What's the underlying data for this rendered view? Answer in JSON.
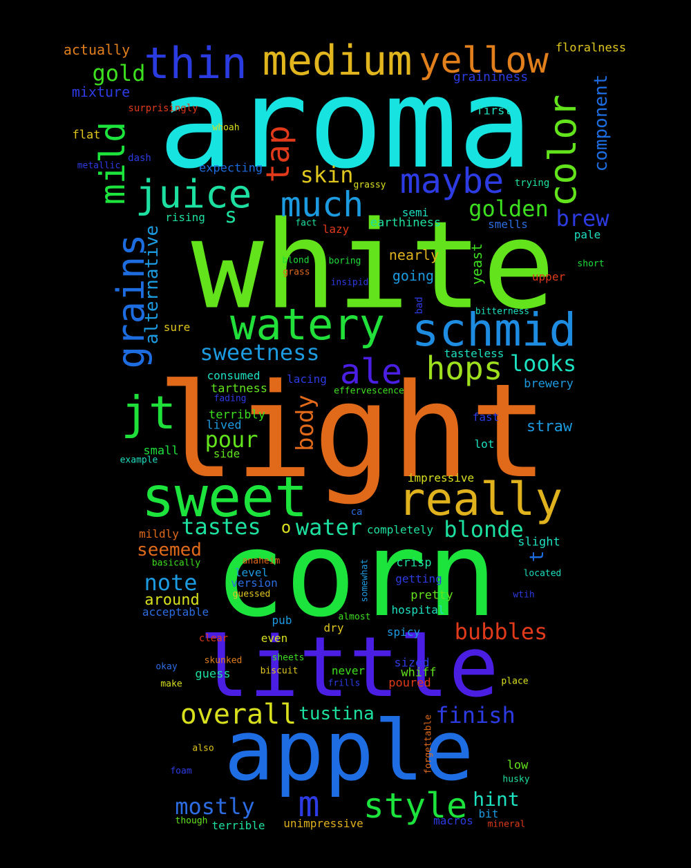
{
  "words": [
    {
      "text": "aroma",
      "color": "#17e3e0"
    },
    {
      "text": "white",
      "color": "#62e31b"
    },
    {
      "text": "light",
      "color": "#e06a1a"
    },
    {
      "text": "corn",
      "color": "#1de33d"
    },
    {
      "text": "little",
      "color": "#4a1fe3"
    },
    {
      "text": "apple",
      "color": "#1f6de3"
    },
    {
      "text": "sweet",
      "color": "#1de33d"
    },
    {
      "text": "really",
      "color": "#e0b21e"
    },
    {
      "text": "watery",
      "color": "#22e03a"
    },
    {
      "text": "schmid",
      "color": "#1e8ce0"
    },
    {
      "text": "medium",
      "color": "#e0b51d"
    },
    {
      "text": "yellow",
      "color": "#e07f1b"
    },
    {
      "text": "thin",
      "color": "#2a3be0"
    },
    {
      "text": "juice",
      "color": "#1de0a0"
    },
    {
      "text": "maybe",
      "color": "#2d3be3"
    },
    {
      "text": "much",
      "color": "#1d9be0"
    },
    {
      "text": "jt",
      "color": "#1fe03a"
    },
    {
      "text": "ale",
      "color": "#4a1fe3"
    },
    {
      "text": "hops",
      "color": "#9ee01e"
    },
    {
      "text": "style",
      "color": "#1de33d"
    },
    {
      "text": "overall",
      "color": "#d8e01e"
    },
    {
      "text": "m",
      "color": "#2d3be3"
    },
    {
      "text": "color",
      "color": "#62e31b"
    },
    {
      "text": "mild",
      "color": "#1de33d"
    },
    {
      "text": "grains",
      "color": "#1d6de0"
    },
    {
      "text": "tap",
      "color": "#e03a1b"
    },
    {
      "text": "golden",
      "color": "#3de01e"
    },
    {
      "text": "gold",
      "color": "#3de01e"
    },
    {
      "text": "brew",
      "color": "#2d3be3"
    },
    {
      "text": "skin",
      "color": "#e0c71e"
    },
    {
      "text": "s",
      "color": "#1de0a0"
    },
    {
      "text": "sweetness",
      "color": "#1d9be0"
    },
    {
      "text": "looks",
      "color": "#1de0c0"
    },
    {
      "text": "pour",
      "color": "#62e31b"
    },
    {
      "text": "tastes",
      "color": "#1de0a0"
    },
    {
      "text": "water",
      "color": "#1de0a0"
    },
    {
      "text": "blonde",
      "color": "#1de0a0"
    },
    {
      "text": "bubbles",
      "color": "#e03a1b"
    },
    {
      "text": "finish",
      "color": "#2d3be3"
    },
    {
      "text": "tustina",
      "color": "#1de0a0"
    },
    {
      "text": "note",
      "color": "#1d9be0"
    },
    {
      "text": "mostly",
      "color": "#2d6de3"
    },
    {
      "text": "hint",
      "color": "#1de0c0"
    },
    {
      "text": "body",
      "color": "#e06a1a"
    },
    {
      "text": "alternative",
      "color": "#1d9be0"
    },
    {
      "text": "component",
      "color": "#1d6de0"
    },
    {
      "text": "seemed",
      "color": "#e06a1a"
    },
    {
      "text": "around",
      "color": "#d8e01e"
    },
    {
      "text": "t",
      "color": "#1d6de0"
    },
    {
      "text": "yeast",
      "color": "#3de01e"
    },
    {
      "text": "straw",
      "color": "#1d9be0"
    },
    {
      "text": "actually",
      "color": "#e07f1b"
    },
    {
      "text": "floralness",
      "color": "#e0c71e"
    },
    {
      "text": "mixture",
      "color": "#2d3be3"
    },
    {
      "text": "graininess",
      "color": "#2d3be3"
    },
    {
      "text": "first",
      "color": "#1de0c0"
    },
    {
      "text": "surprisingly",
      "color": "#e03a1b"
    },
    {
      "text": "whoah",
      "color": "#d8e01e"
    },
    {
      "text": "flat",
      "color": "#e0c71e"
    },
    {
      "text": "dash",
      "color": "#2d3be3"
    },
    {
      "text": "metallic",
      "color": "#2d3be3"
    },
    {
      "text": "expecting",
      "color": "#1d6de0"
    },
    {
      "text": "grassy",
      "color": "#d8e01e"
    },
    {
      "text": "trying",
      "color": "#1de0a0"
    },
    {
      "text": "rising",
      "color": "#1de0a0"
    },
    {
      "text": "semi",
      "color": "#1de0c0"
    },
    {
      "text": "earthiness",
      "color": "#1de0a0"
    },
    {
      "text": "smells",
      "color": "#2d6de3"
    },
    {
      "text": "fact",
      "color": "#1de0a0"
    },
    {
      "text": "lazy",
      "color": "#e03a1b"
    },
    {
      "text": "pale",
      "color": "#1de0c0"
    },
    {
      "text": "nearly",
      "color": "#e0b21e"
    },
    {
      "text": "blond",
      "color": "#1de03a"
    },
    {
      "text": "boring",
      "color": "#1de03a"
    },
    {
      "text": "grass",
      "color": "#e06a1a"
    },
    {
      "text": "insipid",
      "color": "#2d3be3"
    },
    {
      "text": "short",
      "color": "#1de03a"
    },
    {
      "text": "upper",
      "color": "#e03a1b"
    },
    {
      "text": "going",
      "color": "#1d9be0"
    },
    {
      "text": "bad",
      "color": "#2d3be3"
    },
    {
      "text": "bitterness",
      "color": "#1de0c0"
    },
    {
      "text": "sure",
      "color": "#e0c71e"
    },
    {
      "text": "tasteless",
      "color": "#1de0c0"
    },
    {
      "text": "consumed",
      "color": "#1de0c0"
    },
    {
      "text": "lacing",
      "color": "#2d3be3"
    },
    {
      "text": "brewery",
      "color": "#1d9be0"
    },
    {
      "text": "tartness",
      "color": "#62e31b"
    },
    {
      "text": "effervescence",
      "color": "#3de01e"
    },
    {
      "text": "fading",
      "color": "#2d3be3"
    },
    {
      "text": "terribly",
      "color": "#3de01e"
    },
    {
      "text": "lived",
      "color": "#1d9be0"
    },
    {
      "text": "fast",
      "color": "#2d3be3"
    },
    {
      "text": "small",
      "color": "#1de03a"
    },
    {
      "text": "side",
      "color": "#62e31b"
    },
    {
      "text": "lot",
      "color": "#1de0c0"
    },
    {
      "text": "example",
      "color": "#1de0c0"
    },
    {
      "text": "impressive",
      "color": "#d8e01e"
    },
    {
      "text": "ca",
      "color": "#2d6de3"
    },
    {
      "text": "completely",
      "color": "#1de0a0"
    },
    {
      "text": "o",
      "color": "#d8e01e"
    },
    {
      "text": "slight",
      "color": "#1de0c0"
    },
    {
      "text": "mildly",
      "color": "#e06a1a"
    },
    {
      "text": "anaheim",
      "color": "#e06a1a"
    },
    {
      "text": "basically",
      "color": "#3de01e"
    },
    {
      "text": "crisp",
      "color": "#1de0a0"
    },
    {
      "text": "level",
      "color": "#1d9be0"
    },
    {
      "text": "somewhat",
      "color": "#1d9be0"
    },
    {
      "text": "located",
      "color": "#1de0c0"
    },
    {
      "text": "getting",
      "color": "#2d3be3"
    },
    {
      "text": "version",
      "color": "#2d6de3"
    },
    {
      "text": "pretty",
      "color": "#62e31b"
    },
    {
      "text": "guessed",
      "color": "#e0c71e"
    },
    {
      "text": "wtih",
      "color": "#2d3be3"
    },
    {
      "text": "acceptable",
      "color": "#2d6de3"
    },
    {
      "text": "hospital",
      "color": "#1de0c0"
    },
    {
      "text": "almost",
      "color": "#3de01e"
    },
    {
      "text": "pub",
      "color": "#1d9be0"
    },
    {
      "text": "dry",
      "color": "#e0c71e"
    },
    {
      "text": "clear",
      "color": "#e03a1b"
    },
    {
      "text": "even",
      "color": "#d8e01e"
    },
    {
      "text": "spicy",
      "color": "#1d9be0"
    },
    {
      "text": "sheets",
      "color": "#3de01e"
    },
    {
      "text": "sized",
      "color": "#2d3be3"
    },
    {
      "text": "okay",
      "color": "#2d6de3"
    },
    {
      "text": "skunked",
      "color": "#e07f1b"
    },
    {
      "text": "never",
      "color": "#3de01e"
    },
    {
      "text": "whiff",
      "color": "#62e31b"
    },
    {
      "text": "guess",
      "color": "#1de0a0"
    },
    {
      "text": "biscuit",
      "color": "#e0c71e"
    },
    {
      "text": "poured",
      "color": "#e03a1b"
    },
    {
      "text": "make",
      "color": "#d8e01e"
    },
    {
      "text": "frills",
      "color": "#2d3be3"
    },
    {
      "text": "place",
      "color": "#d8e01e"
    },
    {
      "text": "forgettable",
      "color": "#e06a1a"
    },
    {
      "text": "also",
      "color": "#e0c71e"
    },
    {
      "text": "foam",
      "color": "#2d3be3"
    },
    {
      "text": "low",
      "color": "#62e31b"
    },
    {
      "text": "husky",
      "color": "#1de0a0"
    },
    {
      "text": "though",
      "color": "#62e31b"
    },
    {
      "text": "terrible",
      "color": "#1de0a0"
    },
    {
      "text": "unimpressive",
      "color": "#e0b21e"
    },
    {
      "text": "macros",
      "color": "#2d3be3"
    },
    {
      "text": "bit",
      "color": "#1d9be0"
    },
    {
      "text": "mineral",
      "color": "#e03a1b"
    }
  ]
}
